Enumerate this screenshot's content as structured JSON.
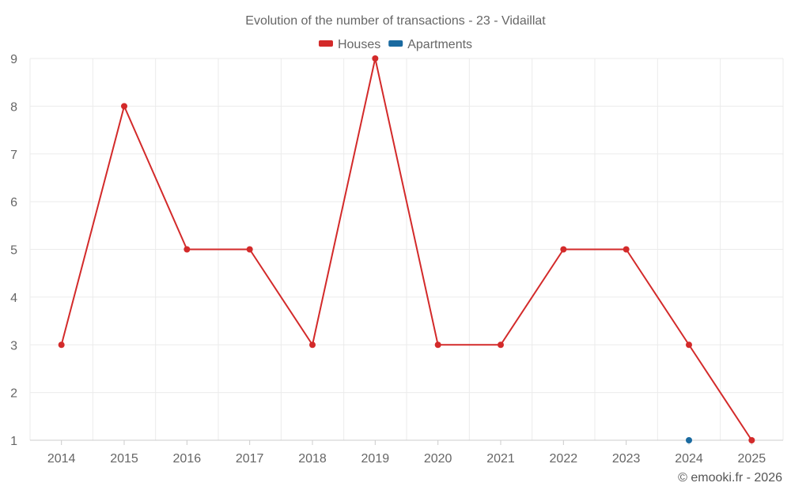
{
  "chart_data": {
    "type": "line",
    "title": "Evolution of the number of transactions - 23 - Vidaillat",
    "categories": [
      "2014",
      "2015",
      "2016",
      "2017",
      "2018",
      "2019",
      "2020",
      "2021",
      "2022",
      "2023",
      "2024",
      "2025"
    ],
    "series": [
      {
        "name": "Houses",
        "color": "#d32a2a",
        "values": [
          3,
          8,
          5,
          5,
          3,
          9,
          3,
          3,
          5,
          5,
          3,
          1
        ]
      },
      {
        "name": "Apartments",
        "color": "#1a6aa0",
        "values": [
          null,
          null,
          null,
          null,
          null,
          null,
          null,
          null,
          null,
          null,
          1,
          null
        ]
      }
    ],
    "ylim": [
      1,
      9
    ],
    "yticks": [
      1,
      2,
      3,
      4,
      5,
      6,
      7,
      8,
      9
    ],
    "xlabel": "",
    "ylabel": "",
    "grid": true,
    "legend_position": "top-center",
    "credit": "© emooki.fr - 2026"
  }
}
